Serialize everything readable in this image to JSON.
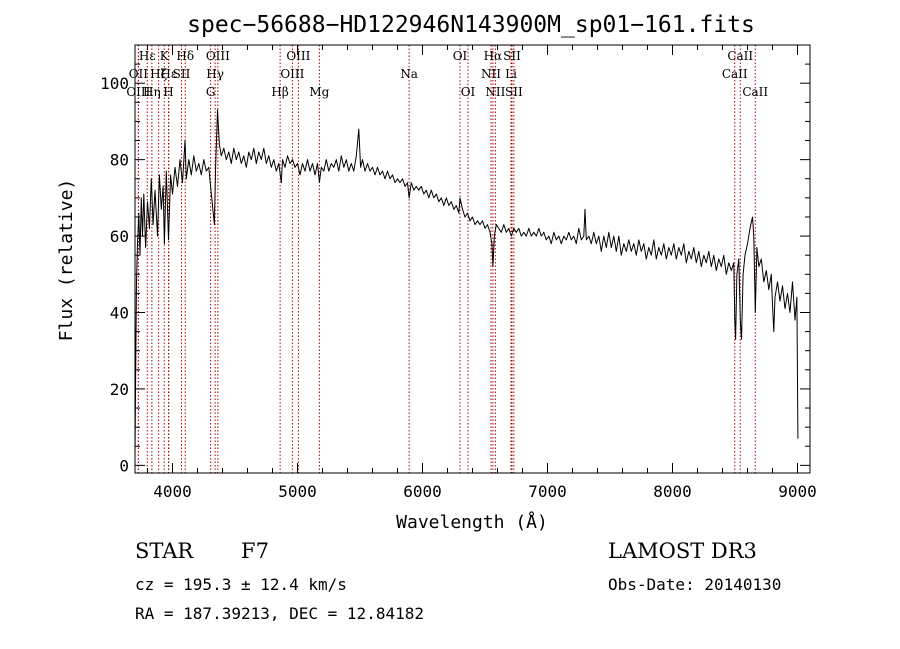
{
  "chart_data": {
    "type": "line",
    "title": "spec−56688−HD122946N143900M_sp01−161.fits",
    "xlabel": "Wavelength (Å)",
    "ylabel": "Flux (relative)",
    "xlim": [
      3700,
      9100
    ],
    "ylim": [
      -2,
      110
    ],
    "xticks": [
      4000,
      5000,
      6000,
      7000,
      8000,
      9000
    ],
    "yticks": [
      0,
      20,
      40,
      60,
      80,
      100
    ],
    "x_minor_step": 200,
    "y_minor_step": 5,
    "series": [
      {
        "name": "flux",
        "points": [
          [
            3700,
            2
          ],
          [
            3705,
            22
          ],
          [
            3712,
            48
          ],
          [
            3720,
            58
          ],
          [
            3730,
            66
          ],
          [
            3740,
            55
          ],
          [
            3750,
            70
          ],
          [
            3760,
            60
          ],
          [
            3770,
            71
          ],
          [
            3785,
            57
          ],
          [
            3800,
            69
          ],
          [
            3815,
            62
          ],
          [
            3830,
            75
          ],
          [
            3845,
            63
          ],
          [
            3860,
            72
          ],
          [
            3880,
            60
          ],
          [
            3895,
            76
          ],
          [
            3910,
            67
          ],
          [
            3925,
            73
          ],
          [
            3935,
            58
          ],
          [
            3950,
            77
          ],
          [
            3968,
            59
          ],
          [
            3985,
            76
          ],
          [
            4000,
            71
          ],
          [
            4020,
            78
          ],
          [
            4040,
            73
          ],
          [
            4060,
            80
          ],
          [
            4080,
            74
          ],
          [
            4100,
            85
          ],
          [
            4110,
            75
          ],
          [
            4130,
            80
          ],
          [
            4150,
            76
          ],
          [
            4170,
            81
          ],
          [
            4190,
            77
          ],
          [
            4210,
            79
          ],
          [
            4230,
            76
          ],
          [
            4250,
            80
          ],
          [
            4270,
            77
          ],
          [
            4290,
            78
          ],
          [
            4305,
            73
          ],
          [
            4320,
            68
          ],
          [
            4335,
            63
          ],
          [
            4345,
            78
          ],
          [
            4360,
            93
          ],
          [
            4375,
            84
          ],
          [
            4390,
            81
          ],
          [
            4410,
            83
          ],
          [
            4430,
            80
          ],
          [
            4450,
            82
          ],
          [
            4470,
            79
          ],
          [
            4490,
            83
          ],
          [
            4510,
            80
          ],
          [
            4530,
            82
          ],
          [
            4550,
            79
          ],
          [
            4570,
            81
          ],
          [
            4590,
            78
          ],
          [
            4610,
            82
          ],
          [
            4630,
            80
          ],
          [
            4650,
            83
          ],
          [
            4670,
            79
          ],
          [
            4690,
            82
          ],
          [
            4710,
            80
          ],
          [
            4730,
            83
          ],
          [
            4750,
            79
          ],
          [
            4770,
            81
          ],
          [
            4790,
            78
          ],
          [
            4810,
            80
          ],
          [
            4830,
            77
          ],
          [
            4850,
            79
          ],
          [
            4870,
            74
          ],
          [
            4880,
            80
          ],
          [
            4900,
            78
          ],
          [
            4920,
            81
          ],
          [
            4940,
            79
          ],
          [
            4960,
            80
          ],
          [
            4980,
            78
          ],
          [
            5000,
            79
          ],
          [
            5020,
            76
          ],
          [
            5040,
            79
          ],
          [
            5060,
            77
          ],
          [
            5080,
            80
          ],
          [
            5100,
            77
          ],
          [
            5120,
            79
          ],
          [
            5140,
            76
          ],
          [
            5160,
            79
          ],
          [
            5175,
            74
          ],
          [
            5190,
            78
          ],
          [
            5210,
            77
          ],
          [
            5230,
            80
          ],
          [
            5250,
            77
          ],
          [
            5270,
            79
          ],
          [
            5290,
            78
          ],
          [
            5310,
            80
          ],
          [
            5330,
            77
          ],
          [
            5350,
            81
          ],
          [
            5370,
            78
          ],
          [
            5390,
            80
          ],
          [
            5410,
            77
          ],
          [
            5430,
            79
          ],
          [
            5450,
            77
          ],
          [
            5470,
            81
          ],
          [
            5490,
            88
          ],
          [
            5505,
            78
          ],
          [
            5520,
            80
          ],
          [
            5540,
            77
          ],
          [
            5560,
            79
          ],
          [
            5580,
            77
          ],
          [
            5600,
            78
          ],
          [
            5620,
            76
          ],
          [
            5640,
            78
          ],
          [
            5660,
            76
          ],
          [
            5680,
            77
          ],
          [
            5700,
            75
          ],
          [
            5720,
            77
          ],
          [
            5740,
            75
          ],
          [
            5760,
            76
          ],
          [
            5780,
            74
          ],
          [
            5800,
            75
          ],
          [
            5820,
            74
          ],
          [
            5840,
            75
          ],
          [
            5860,
            73
          ],
          [
            5880,
            74
          ],
          [
            5893,
            70
          ],
          [
            5910,
            74
          ],
          [
            5930,
            72
          ],
          [
            5950,
            73
          ],
          [
            5970,
            72
          ],
          [
            5990,
            73
          ],
          [
            6010,
            71
          ],
          [
            6030,
            72
          ],
          [
            6050,
            70
          ],
          [
            6070,
            72
          ],
          [
            6090,
            70
          ],
          [
            6110,
            71
          ],
          [
            6130,
            69
          ],
          [
            6150,
            70
          ],
          [
            6170,
            68
          ],
          [
            6190,
            70
          ],
          [
            6210,
            68
          ],
          [
            6230,
            69
          ],
          [
            6250,
            67
          ],
          [
            6270,
            68
          ],
          [
            6290,
            66
          ],
          [
            6300,
            70
          ],
          [
            6320,
            67
          ],
          [
            6340,
            65
          ],
          [
            6360,
            66
          ],
          [
            6380,
            64
          ],
          [
            6400,
            65
          ],
          [
            6420,
            63
          ],
          [
            6440,
            64
          ],
          [
            6460,
            63
          ],
          [
            6480,
            64
          ],
          [
            6500,
            62
          ],
          [
            6520,
            63
          ],
          [
            6540,
            61
          ],
          [
            6555,
            58
          ],
          [
            6563,
            52
          ],
          [
            6575,
            60
          ],
          [
            6590,
            63
          ],
          [
            6610,
            62
          ],
          [
            6630,
            61
          ],
          [
            6650,
            63
          ],
          [
            6670,
            61
          ],
          [
            6690,
            62
          ],
          [
            6710,
            60
          ],
          [
            6730,
            62
          ],
          [
            6750,
            61
          ],
          [
            6770,
            62
          ],
          [
            6790,
            60
          ],
          [
            6810,
            61
          ],
          [
            6830,
            60
          ],
          [
            6850,
            62
          ],
          [
            6870,
            60
          ],
          [
            6890,
            61
          ],
          [
            6910,
            60
          ],
          [
            6930,
            62
          ],
          [
            6950,
            60
          ],
          [
            6970,
            61
          ],
          [
            6990,
            59
          ],
          [
            7010,
            60
          ],
          [
            7030,
            58
          ],
          [
            7050,
            61
          ],
          [
            7070,
            59
          ],
          [
            7090,
            60
          ],
          [
            7110,
            58
          ],
          [
            7130,
            60
          ],
          [
            7150,
            59
          ],
          [
            7170,
            61
          ],
          [
            7190,
            59
          ],
          [
            7210,
            60
          ],
          [
            7230,
            58
          ],
          [
            7250,
            62
          ],
          [
            7270,
            59
          ],
          [
            7290,
            60
          ],
          [
            7300,
            67
          ],
          [
            7310,
            59
          ],
          [
            7330,
            60
          ],
          [
            7350,
            58
          ],
          [
            7370,
            61
          ],
          [
            7390,
            58
          ],
          [
            7410,
            60
          ],
          [
            7430,
            56
          ],
          [
            7450,
            60
          ],
          [
            7470,
            57
          ],
          [
            7490,
            61
          ],
          [
            7510,
            57
          ],
          [
            7530,
            60
          ],
          [
            7550,
            56
          ],
          [
            7570,
            60
          ],
          [
            7590,
            55
          ],
          [
            7610,
            58
          ],
          [
            7630,
            56
          ],
          [
            7650,
            59
          ],
          [
            7670,
            56
          ],
          [
            7690,
            58
          ],
          [
            7710,
            55
          ],
          [
            7730,
            59
          ],
          [
            7750,
            56
          ],
          [
            7770,
            58
          ],
          [
            7790,
            54
          ],
          [
            7810,
            57
          ],
          [
            7830,
            55
          ],
          [
            7850,
            59
          ],
          [
            7870,
            54
          ],
          [
            7890,
            57
          ],
          [
            7910,
            55
          ],
          [
            7930,
            58
          ],
          [
            7950,
            54
          ],
          [
            7970,
            57
          ],
          [
            7990,
            55
          ],
          [
            8010,
            58
          ],
          [
            8030,
            54
          ],
          [
            8050,
            57
          ],
          [
            8070,
            55
          ],
          [
            8090,
            58
          ],
          [
            8110,
            53
          ],
          [
            8130,
            56
          ],
          [
            8150,
            54
          ],
          [
            8170,
            57
          ],
          [
            8190,
            53
          ],
          [
            8210,
            56
          ],
          [
            8230,
            52
          ],
          [
            8250,
            55
          ],
          [
            8270,
            53
          ],
          [
            8290,
            56
          ],
          [
            8310,
            52
          ],
          [
            8330,
            55
          ],
          [
            8350,
            51
          ],
          [
            8370,
            54
          ],
          [
            8390,
            52
          ],
          [
            8410,
            55
          ],
          [
            8430,
            50
          ],
          [
            8450,
            53
          ],
          [
            8470,
            51
          ],
          [
            8490,
            53
          ],
          [
            8498,
            38
          ],
          [
            8505,
            33
          ],
          [
            8515,
            50
          ],
          [
            8530,
            54
          ],
          [
            8542,
            38
          ],
          [
            8552,
            33
          ],
          [
            8565,
            50
          ],
          [
            8580,
            55
          ],
          [
            8600,
            58
          ],
          [
            8620,
            62
          ],
          [
            8640,
            65
          ],
          [
            8650,
            60
          ],
          [
            8662,
            40
          ],
          [
            8675,
            57
          ],
          [
            8690,
            52
          ],
          [
            8710,
            54
          ],
          [
            8730,
            48
          ],
          [
            8750,
            51
          ],
          [
            8770,
            46
          ],
          [
            8790,
            50
          ],
          [
            8800,
            42
          ],
          [
            8810,
            35
          ],
          [
            8820,
            44
          ],
          [
            8840,
            48
          ],
          [
            8860,
            43
          ],
          [
            8880,
            47
          ],
          [
            8900,
            41
          ],
          [
            8920,
            45
          ],
          [
            8940,
            40
          ],
          [
            8960,
            48
          ],
          [
            8980,
            38
          ],
          [
            8995,
            44
          ],
          [
            9003,
            7
          ]
        ]
      }
    ],
    "lines": [
      {
        "label": "Hε",
        "x": 3798,
        "row": 0
      },
      {
        "label": "OII",
        "x": 3727,
        "row": 1
      },
      {
        "label": "OIII",
        "x": 3727,
        "row": 2
      },
      {
        "label": "Hζ",
        "x": 3889,
        "row": 1
      },
      {
        "label": "Hη",
        "x": 3835,
        "row": 2
      },
      {
        "label": "K",
        "x": 3934,
        "row": 0
      },
      {
        "label": "Hε",
        "x": 3970,
        "row": 1
      },
      {
        "label": "H",
        "x": 3968,
        "row": 2
      },
      {
        "label": "SII",
        "x": 4072,
        "row": 1
      },
      {
        "label": "Hδ",
        "x": 4102,
        "row": 0
      },
      {
        "label": "OIII",
        "x": 4363,
        "row": 0
      },
      {
        "label": "Hγ",
        "x": 4341,
        "row": 1
      },
      {
        "label": "G",
        "x": 4305,
        "row": 2
      },
      {
        "label": "OIII",
        "x": 5007,
        "row": 0
      },
      {
        "label": "OIII",
        "x": 4959,
        "row": 1
      },
      {
        "label": "Hβ",
        "x": 4861,
        "row": 2
      },
      {
        "label": "Mg",
        "x": 5175,
        "row": 2
      },
      {
        "label": "Na",
        "x": 5893,
        "row": 1
      },
      {
        "label": "OI",
        "x": 6300,
        "row": 0
      },
      {
        "label": "OI",
        "x": 6364,
        "row": 2
      },
      {
        "label": "Hα",
        "x": 6563,
        "row": 0
      },
      {
        "label": "NII",
        "x": 6548,
        "row": 1
      },
      {
        "label": "NII",
        "x": 6583,
        "row": 2
      },
      {
        "label": "SII",
        "x": 6716,
        "row": 0
      },
      {
        "label": "Li",
        "x": 6708,
        "row": 1
      },
      {
        "label": "SII",
        "x": 6731,
        "row": 2
      },
      {
        "label": "CaII",
        "x": 8542,
        "row": 0
      },
      {
        "label": "CaII",
        "x": 8498,
        "row": 1
      },
      {
        "label": "CaII",
        "x": 8662,
        "row": 2
      }
    ]
  },
  "info": {
    "object_class": "STAR",
    "subclass": "F7",
    "redshift": "cz = 195.3 ± 12.4 km/s",
    "coords": "RA = 187.39213, DEC =  12.84182",
    "survey": "LAMOST DR3",
    "obs_date": "Obs-Date: 20140130"
  },
  "colors": {
    "line_marker": "#b00000",
    "spectrum": "#000000",
    "axes": "#000000",
    "background": "#ffffff"
  }
}
